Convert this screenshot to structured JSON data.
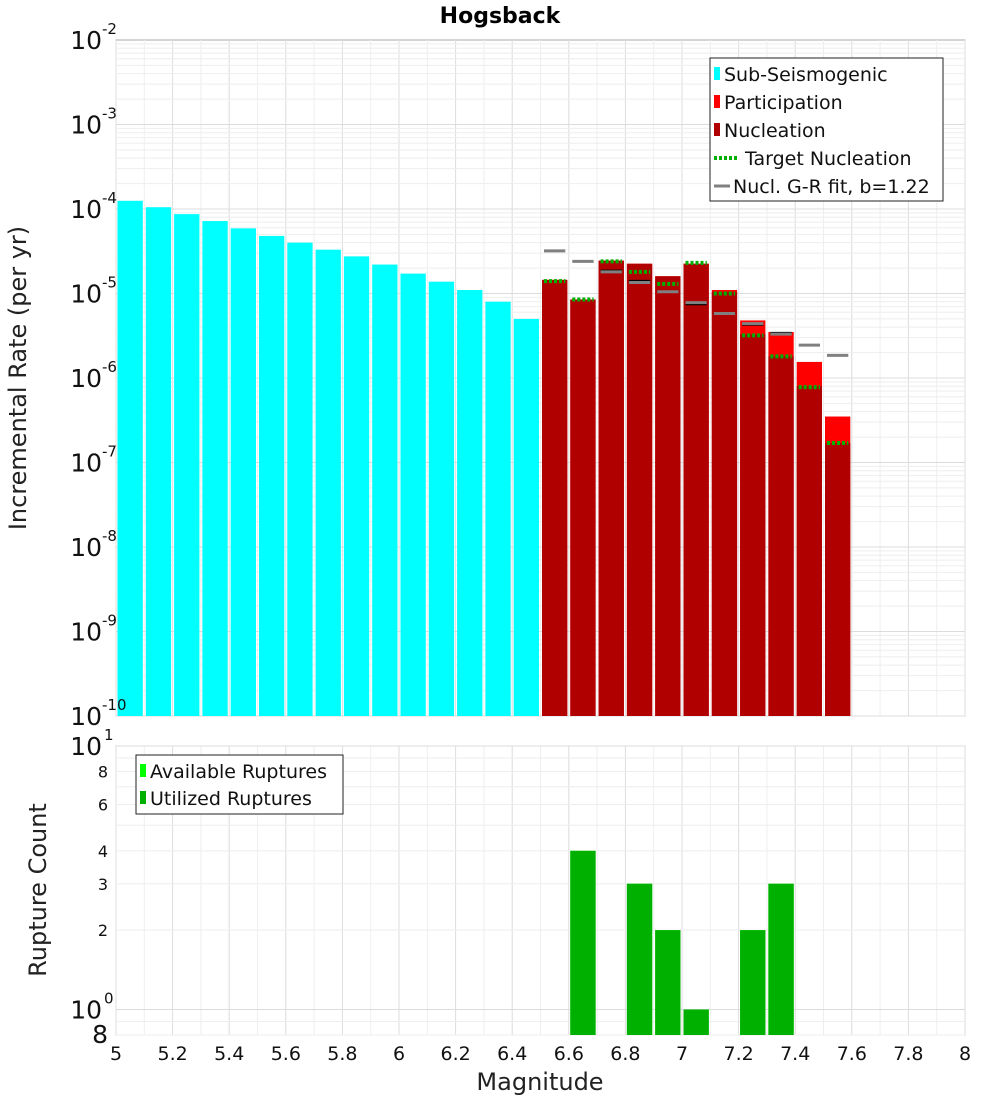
{
  "chart_data": [
    {
      "type": "bar",
      "title": "Hogsback",
      "xlabel": "",
      "ylabel": "Incremental Rate (per yr)",
      "y_scale": "log",
      "ylim": [
        1e-10,
        0.01
      ],
      "xlim": [
        5,
        8
      ],
      "legend_placement": "top-right",
      "legend": [
        {
          "label": "Sub-Seismogenic",
          "kind": "bar",
          "color": "#00ffff"
        },
        {
          "label": "Participation",
          "kind": "bar",
          "color": "#ff0000"
        },
        {
          "label": "Nucleation",
          "kind": "bar",
          "color": "#b00000"
        },
        {
          "label": "Target Nucleation",
          "kind": "dotted",
          "color": "#00b000"
        },
        {
          "label": "Nucl. G-R fit, b=1.22",
          "kind": "line",
          "color": "#808080"
        }
      ],
      "series": [
        {
          "name": "Sub-Seismogenic",
          "color": "#00ffff",
          "x": [
            5.05,
            5.15,
            5.25,
            5.35,
            5.45,
            5.55,
            5.65,
            5.75,
            5.85,
            5.95,
            6.05,
            6.15,
            6.25,
            6.35,
            6.45
          ],
          "values": [
            0.000125,
            0.000105,
            8.7e-05,
            7.2e-05,
            5.9e-05,
            4.8e-05,
            4e-05,
            3.3e-05,
            2.75e-05,
            2.2e-05,
            1.72e-05,
            1.38e-05,
            1.1e-05,
            8e-06,
            5e-06
          ]
        },
        {
          "name": "Participation",
          "color": "#ff0000",
          "x": [
            6.55,
            6.65,
            6.75,
            6.85,
            6.95,
            7.05,
            7.15,
            7.25,
            7.35,
            7.45,
            7.55
          ],
          "values": [
            1.45e-05,
            8.5e-06,
            2.45e-05,
            2.25e-05,
            1.6e-05,
            2.25e-05,
            1.1e-05,
            4.8e-06,
            3.5e-06,
            1.55e-06,
            3.5e-07
          ]
        },
        {
          "name": "Nucleation",
          "color": "#b00000",
          "x": [
            6.55,
            6.65,
            6.75,
            6.85,
            6.95,
            7.05,
            7.15,
            7.25,
            7.35,
            7.45,
            7.55
          ],
          "values": [
            1.45e-05,
            8.5e-06,
            2.45e-05,
            2.25e-05,
            1.6e-05,
            2.25e-05,
            1.05e-05,
            3.3e-06,
            1.8e-06,
            8e-07,
            1.7e-07
          ]
        },
        {
          "name": "Target Nucleation",
          "color": "#00b000",
          "x": [
            6.55,
            6.65,
            6.75,
            6.85,
            6.95,
            7.05,
            7.15,
            7.25,
            7.35,
            7.45,
            7.55
          ],
          "values": [
            1.4e-05,
            8.5e-06,
            2.4e-05,
            1.8e-05,
            1.3e-05,
            2.3e-05,
            1e-05,
            3.2e-06,
            1.8e-06,
            7.8e-07,
            1.7e-07
          ]
        },
        {
          "name": "",
          "color": "#000000",
          "x": [
            6.75,
            6.85,
            6.95,
            7.05,
            7.15,
            7.25,
            7.35
          ],
          "values": [
            1.85e-05,
            1.4e-05,
            1.05e-05,
            7.5e-06,
            5.8e-06,
            4.3e-06,
            3.4e-06
          ]
        },
        {
          "name": "Nucl. G-R fit, b=1.22",
          "color": "#808080",
          "x": [
            6.55,
            6.65,
            6.75,
            6.85,
            6.95,
            7.05,
            7.15,
            7.25,
            7.35,
            7.45,
            7.55
          ],
          "values": [
            3.2e-05,
            2.4e-05,
            1.8e-05,
            1.35e-05,
            1.05e-05,
            7.8e-06,
            5.8e-06,
            4.4e-06,
            3.3e-06,
            2.45e-06,
            1.85e-06
          ]
        }
      ]
    },
    {
      "type": "bar",
      "xlabel": "Magnitude",
      "ylabel": "Rupture Count",
      "y_scale": "log",
      "ylim": [
        0.8,
        10
      ],
      "xlim": [
        5,
        8
      ],
      "legend_placement": "top-left",
      "legend": [
        {
          "label": "Available Ruptures",
          "kind": "bar",
          "color": "#00ff00"
        },
        {
          "label": "Utilized Ruptures",
          "kind": "bar",
          "color": "#00b000"
        }
      ],
      "series": [
        {
          "name": "Available Ruptures",
          "color": "#00ff00",
          "x": [
            6.65,
            6.85,
            6.95,
            7.05,
            7.25,
            7.35
          ],
          "values": [
            4,
            3,
            2,
            1,
            2,
            3
          ]
        },
        {
          "name": "Utilized Ruptures",
          "color": "#00b000",
          "x": [
            6.65,
            6.85,
            6.95,
            7.05,
            7.25,
            7.35
          ],
          "values": [
            4,
            3,
            2,
            1,
            2,
            3
          ]
        }
      ]
    }
  ],
  "axis_labels": {
    "x_ticks": [
      "5",
      "5.2",
      "5.4",
      "5.6",
      "5.8",
      "6",
      "6.2",
      "6.4",
      "6.6",
      "6.8",
      "7",
      "7.2",
      "7.4",
      "7.6",
      "7.8",
      "8"
    ],
    "top_y_ticks": [
      {
        "base": "10",
        "exp": "-2"
      },
      {
        "base": "10",
        "exp": "-3"
      },
      {
        "base": "10",
        "exp": "-4"
      },
      {
        "base": "10",
        "exp": "-5"
      },
      {
        "base": "10",
        "exp": "-6"
      },
      {
        "base": "10",
        "exp": "-7"
      },
      {
        "base": "10",
        "exp": "-8"
      },
      {
        "base": "10",
        "exp": "-9"
      },
      {
        "base": "10",
        "exp": "-10"
      }
    ],
    "bottom_y_ticks_major": [
      {
        "base": "10",
        "exp": "1"
      },
      {
        "base": "10",
        "exp": "0"
      }
    ],
    "bottom_y_ticks_minor": [
      "8",
      "6",
      "4",
      "3",
      "2"
    ],
    "bottom_y_tick_floor": "8"
  }
}
